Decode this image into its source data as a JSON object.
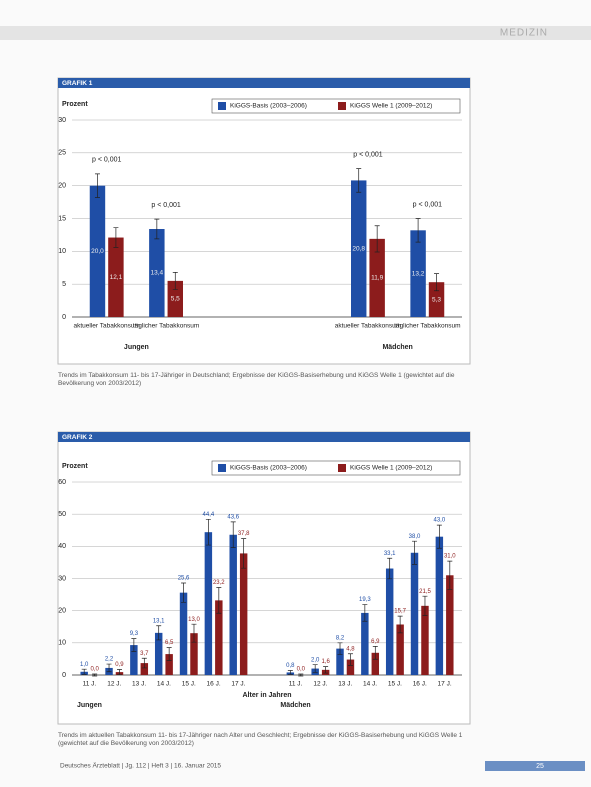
{
  "header": "MEDIZIN",
  "chart_data": [
    {
      "type": "bar",
      "label": "GRAFIK 1",
      "y_label": "Prozent",
      "categories": [
        "aktueller Tabakkonsum",
        "täglicher Tabakkonsum",
        "aktueller Tabakkonsum",
        "täglicher Tabakkonsum"
      ],
      "groups": [
        "Jungen",
        "Mädchen"
      ],
      "series": [
        {
          "name": "KiGGS-Basis (2003–2006)",
          "color": "#1f4ea6",
          "values": [
            20.0,
            13.4,
            20.8,
            13.2
          ],
          "value_labels": [
            "20,0",
            "13,4",
            "20,8",
            "13,2"
          ],
          "errors": [
            1.8,
            1.5,
            1.8,
            1.8
          ]
        },
        {
          "name": "KiGGS Welle 1 (2009–2012)",
          "color": "#8c1c1c",
          "values": [
            12.1,
            5.5,
            11.9,
            5.3
          ],
          "value_labels": [
            "12,1",
            "5,5",
            "11,9",
            "5,3"
          ],
          "errors": [
            1.5,
            1.3,
            2.0,
            1.3
          ]
        }
      ],
      "value_label_position": "inside",
      "annotations": [
        "p < 0,001",
        "p < 0,001",
        "p < 0,001",
        "p < 0,001"
      ],
      "ylim": [
        0,
        30
      ],
      "yticks": [
        0,
        5,
        10,
        15,
        20,
        25,
        30
      ],
      "grid": true,
      "caption": "Trends im Tabakkonsum 11- bis 17-Jähriger in Deutschland; Ergebnisse der KiGGS-Basiserhebung und KiGGS Welle 1 (gewichtet auf die Bevölkerung von 2003/2012)"
    },
    {
      "type": "bar",
      "label": "GRAFIK 2",
      "y_label": "Prozent",
      "x_label": "Alter in Jahren",
      "categories": [
        "11 J.",
        "12 J.",
        "13 J.",
        "14 J.",
        "15 J.",
        "16 J.",
        "17 J.",
        "11 J.",
        "12 J.",
        "13 J.",
        "14 J.",
        "15 J.",
        "16 J.",
        "17 J."
      ],
      "groups": [
        "Jungen",
        "Mädchen"
      ],
      "series": [
        {
          "name": "KiGGS-Basis (2003–2006)",
          "color": "#1f4ea6",
          "values": [
            1.0,
            2.2,
            9.3,
            13.1,
            25.6,
            44.4,
            43.6,
            0.8,
            2.0,
            8.2,
            19.3,
            33.1,
            38.0,
            43.0
          ],
          "value_labels": [
            "1,0",
            "2,2",
            "9,3",
            "13,1",
            "25,6",
            "44,4",
            "43,6",
            "0,8",
            "2,0",
            "8,2",
            "19,3",
            "33,1",
            "38,0",
            "43,0"
          ],
          "errors": [
            0.8,
            1.2,
            2.0,
            2.2,
            3.0,
            4.0,
            4.0,
            0.6,
            1.2,
            1.8,
            2.6,
            3.2,
            3.6,
            3.6
          ]
        },
        {
          "name": "KiGGS Welle 1 (2009–2012)",
          "color": "#8c1c1c",
          "values": [
            0.0,
            0.9,
            3.7,
            6.5,
            13.0,
            23.2,
            37.8,
            0.0,
            1.6,
            4.8,
            6.9,
            15.7,
            21.5,
            31.0
          ],
          "value_labels": [
            "0,0",
            "0,9",
            "3,7",
            "6,5",
            "13,0",
            "23,2",
            "37,8",
            "0,0",
            "1,6",
            "4,8",
            "6,9",
            "15,7",
            "21,5",
            "31,0"
          ],
          "errors": [
            0.3,
            0.8,
            1.5,
            2.0,
            2.8,
            4.0,
            4.6,
            0.3,
            1.0,
            1.8,
            2.0,
            2.6,
            3.0,
            4.4
          ]
        }
      ],
      "value_label_position": "above",
      "ylim": [
        0,
        60
      ],
      "yticks": [
        0,
        10,
        20,
        30,
        40,
        50,
        60
      ],
      "grid": true,
      "caption": "Trends im aktuellen Tabakkonsum 11- bis 17-Jähriger nach Alter und Geschlecht; Ergebnisse der KiGGS-Basiserhebung und KiGGS Welle 1 (gewichtet auf die Bevölkerung von 2003/2012)"
    }
  ],
  "footer": "Deutsches Ärzteblatt | Jg. 112 | Heft 3 | 16. Januar 2015",
  "page_number": "25"
}
